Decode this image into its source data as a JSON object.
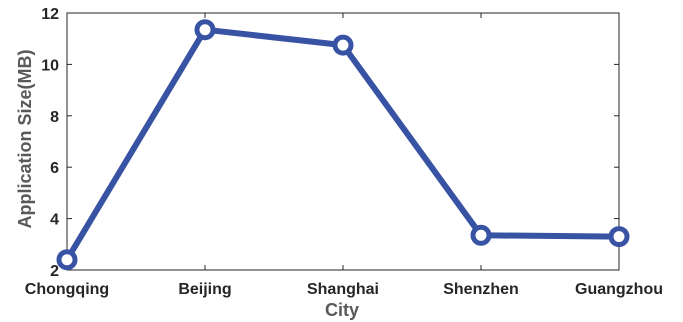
{
  "chart_data": {
    "type": "line",
    "categories": [
      "Chongqing",
      "Beijing",
      "Shanghai",
      "Shenzhen",
      "Guangzhou"
    ],
    "series": [
      {
        "values": [
          2.4,
          11.35,
          10.75,
          3.35,
          3.3
        ]
      }
    ],
    "xlabel": "City",
    "ylabel": "Application Size(MB)",
    "ylim": [
      2,
      12
    ],
    "yticks": [
      2,
      4,
      6,
      8,
      10,
      12
    ],
    "grid": false,
    "line_color": "#3953a4",
    "marker": "circle"
  }
}
